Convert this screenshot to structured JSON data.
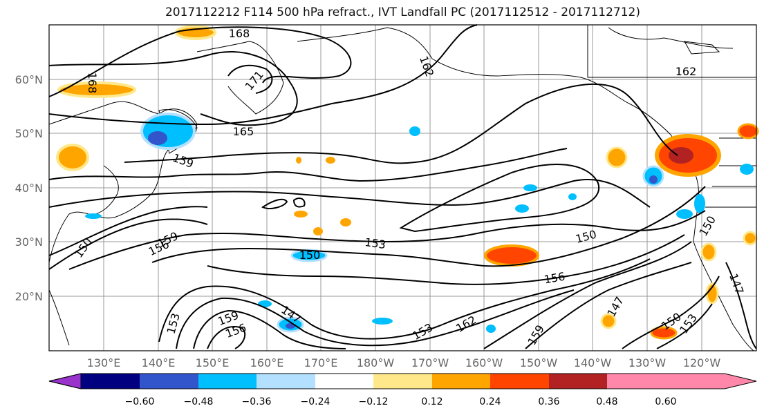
{
  "title": "2017112212 F114 500 hPa refract., IVT Landfall PC (2017112512 - 2017112712)",
  "lat_labels": [
    "60°N",
    "50°N",
    "40°N",
    "30°N",
    "20°N"
  ],
  "lon_labels": [
    "130°E",
    "140°E",
    "150°E",
    "160°E",
    "170°E",
    "180°W",
    "170°W",
    "160°W",
    "150°W",
    "140°W",
    "130°W",
    "120°W"
  ],
  "contour_labels": [
    "168",
    "168",
    "171",
    "162",
    "162",
    "165",
    "159",
    "150",
    "159",
    "156",
    "150",
    "153",
    "150",
    "156",
    "147",
    "150",
    "153",
    "150",
    "147",
    "159",
    "156",
    "153",
    "147",
    "153",
    "162",
    "159"
  ],
  "colorbar": {
    "colors": [
      "#9933cc",
      "#000080",
      "#3355cc",
      "#00bfff",
      "#b3e0ff",
      "#ffffff",
      "#ffe88a",
      "#ffa500",
      "#ff4500",
      "#b22222",
      "#ff88aa"
    ],
    "ticks": [
      "−0.60",
      "−0.48",
      "−0.36",
      "−0.24",
      "−0.12",
      "0.12",
      "0.24",
      "0.36",
      "0.48",
      "0.60"
    ]
  }
}
